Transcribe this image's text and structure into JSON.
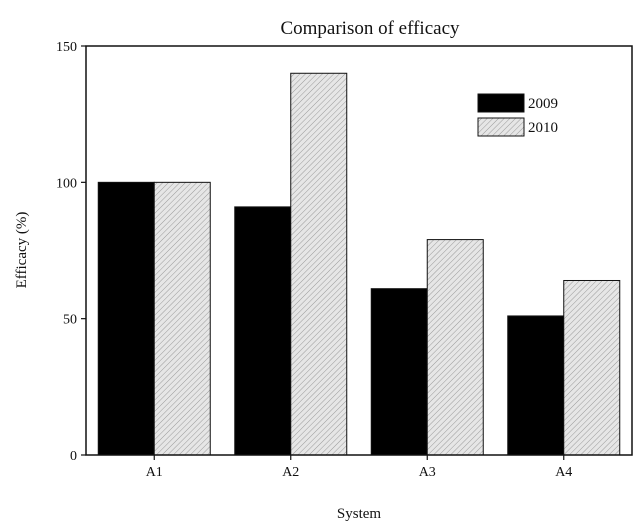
{
  "chart_data": {
    "type": "bar",
    "title": "Comparison of efficacy",
    "xlabel": "System",
    "ylabel": "Efficacy (%)",
    "categories": [
      "A1",
      "A2",
      "A3",
      "A4"
    ],
    "series": [
      {
        "name": "2009",
        "values": [
          100,
          91,
          61,
          51
        ],
        "color": "#000000",
        "fill_style": "solid"
      },
      {
        "name": "2010",
        "values": [
          100,
          140,
          79,
          64
        ],
        "color": "#e0e0e0",
        "fill_style": "hatched"
      }
    ],
    "ylim": [
      0,
      150
    ],
    "yticks": [
      0,
      50,
      100,
      150
    ],
    "grid": false,
    "legend_position": "top-right"
  }
}
